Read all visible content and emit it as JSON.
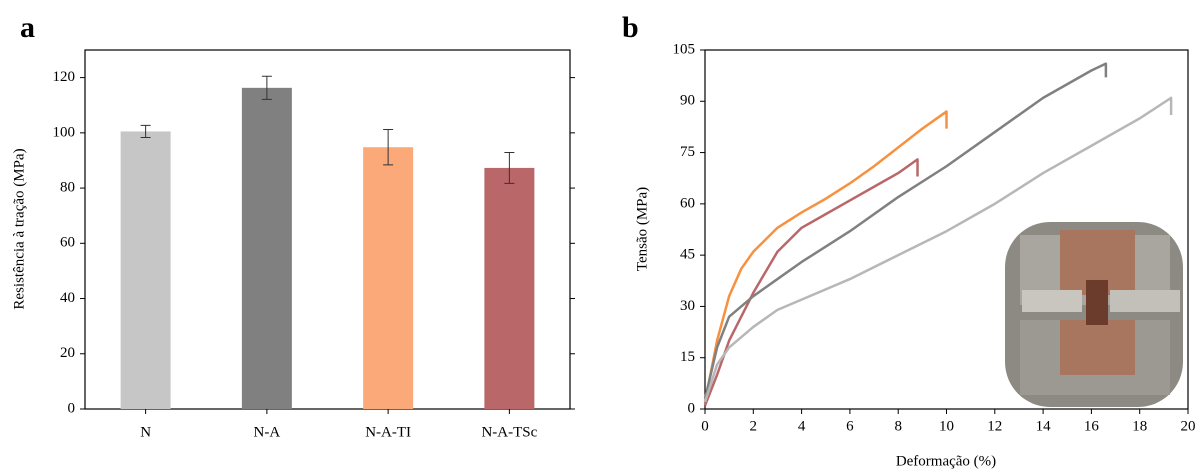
{
  "chart_data": [
    {
      "type": "bar",
      "title": "a",
      "ylabel": "Resistência à tração (MPa)",
      "categories": [
        "N",
        "N-A",
        "N-A-TI",
        "N-A-TSc"
      ],
      "values": [
        100.5,
        116.3,
        94.8,
        87.3
      ],
      "errors": [
        2.2,
        4.2,
        6.4,
        5.6
      ],
      "colors": [
        "#c6c6c6",
        "#808080",
        "#fca97a",
        "#b96769"
      ],
      "ylim": [
        0,
        130
      ],
      "yticks": [
        0,
        20,
        40,
        60,
        80,
        100,
        120
      ]
    },
    {
      "type": "line",
      "title": "b",
      "xlabel": "Deformação (%)",
      "ylabel": "Tensão (MPa)",
      "xlim": [
        0,
        20
      ],
      "xticks": [
        0,
        2,
        4,
        6,
        8,
        10,
        12,
        14,
        16,
        18,
        20
      ],
      "ylim": [
        0,
        105
      ],
      "yticks": [
        0,
        15,
        30,
        45,
        60,
        75,
        90,
        105
      ],
      "series": [
        {
          "color": "#f7913f",
          "x": [
            0,
            0.5,
            1,
            1.5,
            2,
            3,
            4,
            5,
            6,
            7,
            8,
            9,
            10,
            10
          ],
          "values": [
            2,
            20,
            33,
            41,
            46,
            53,
            57.5,
            61.5,
            66,
            71,
            76.5,
            82,
            87,
            82
          ]
        },
        {
          "color": "#b96769",
          "x": [
            0,
            0.5,
            1,
            2,
            3,
            4,
            5,
            6,
            7,
            8,
            8.8,
            8.8
          ],
          "values": [
            1,
            10,
            20,
            34,
            46,
            53,
            57,
            61,
            65,
            69,
            73,
            68
          ]
        },
        {
          "color": "#808080",
          "x": [
            0,
            0.5,
            1,
            2,
            3,
            4,
            6,
            8,
            10,
            12,
            14,
            16,
            16.6,
            16.6
          ],
          "values": [
            3,
            18,
            27,
            33,
            38,
            43,
            52,
            62,
            71,
            81,
            91,
            99,
            101,
            97
          ]
        },
        {
          "color": "#b7b7b7",
          "x": [
            0,
            0.5,
            1,
            2,
            3,
            4,
            6,
            8,
            10,
            12,
            14,
            16,
            18,
            19.3,
            19.3
          ],
          "values": [
            2,
            13,
            18,
            24,
            29,
            32,
            38,
            45,
            52,
            60,
            69,
            77,
            85,
            91,
            86
          ]
        }
      ]
    }
  ]
}
